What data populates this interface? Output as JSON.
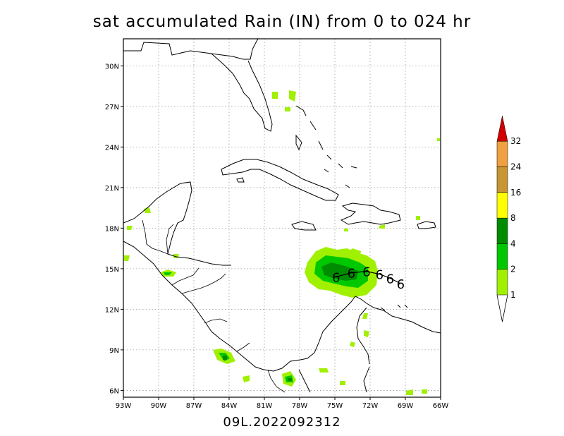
{
  "title": "sat accumulated Rain (IN) from 0 to 024 hr",
  "storm_id": "09L.2022092312",
  "map": {
    "lon_ticks": [
      "93W",
      "90W",
      "87W",
      "84W",
      "81W",
      "78W",
      "75W",
      "72W",
      "69W",
      "66W"
    ],
    "lat_ticks": [
      "6N",
      "9N",
      "12N",
      "15N",
      "18N",
      "21N",
      "24N",
      "27N",
      "30N"
    ],
    "lon_range": [
      -93,
      -66
    ],
    "lat_range": [
      5.5,
      32
    ],
    "grid": "dotted"
  },
  "legend": {
    "levels": [
      "1",
      "2",
      "4",
      "8",
      "16",
      "24",
      "32"
    ],
    "colors": [
      "#a0f000",
      "#00c800",
      "#008c00",
      "#ffff00",
      "#c89632",
      "#f0a040",
      "#d20000"
    ]
  },
  "track_symbol": "6",
  "track_points": [
    {
      "lon": -74.9,
      "lat": 14.4
    },
    {
      "lon": -73.6,
      "lat": 14.7
    },
    {
      "lon": -72.3,
      "lat": 14.8
    },
    {
      "lon": -71.2,
      "lat": 14.6
    },
    {
      "lon": -70.3,
      "lat": 14.3
    },
    {
      "lon": -69.4,
      "lat": 13.9
    }
  ]
}
